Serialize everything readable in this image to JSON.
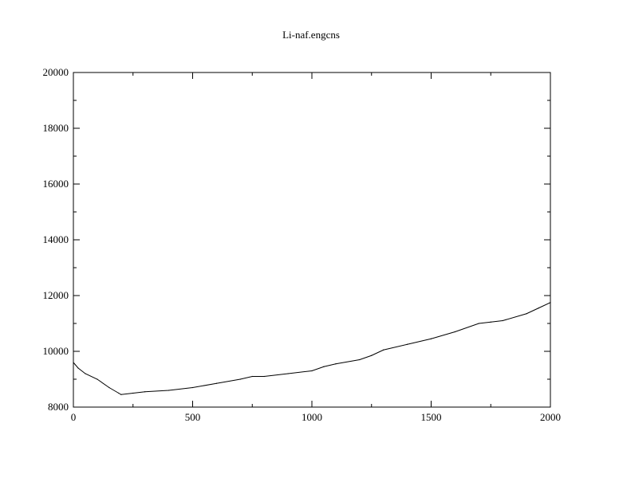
{
  "chart_data": {
    "type": "line",
    "title": "Li-naf.engcns",
    "xlabel": "",
    "ylabel": "",
    "xlim": [
      0,
      2000
    ],
    "ylim": [
      8000,
      20000
    ],
    "x_ticks": [
      0,
      500,
      1000,
      1500,
      2000
    ],
    "y_ticks": [
      8000,
      10000,
      12000,
      14000,
      16000,
      18000,
      20000
    ],
    "x_tick_labels": [
      "0",
      "500",
      "1000",
      "1500",
      "2000"
    ],
    "y_tick_labels": [
      "8000",
      "10000",
      "12000",
      "14000",
      "16000",
      "18000",
      "20000"
    ],
    "grid": false,
    "line_color": "#000000",
    "series": [
      {
        "x": [
          0,
          20,
          50,
          100,
          150,
          190,
          200,
          250,
          300,
          400,
          500,
          600,
          700,
          750,
          800,
          900,
          1000,
          1050,
          1100,
          1200,
          1250,
          1300,
          1400,
          1500,
          1600,
          1700,
          1750,
          1800,
          1900,
          1950,
          2000
        ],
        "values": [
          9600,
          9400,
          9200,
          9000,
          8700,
          8500,
          8450,
          8500,
          8550,
          8600,
          8700,
          8850,
          9000,
          9100,
          9100,
          9200,
          9300,
          9450,
          9550,
          9700,
          9850,
          10050,
          10250,
          10450,
          10700,
          11000,
          11050,
          11100,
          11350,
          11550,
          11750
        ]
      }
    ]
  }
}
